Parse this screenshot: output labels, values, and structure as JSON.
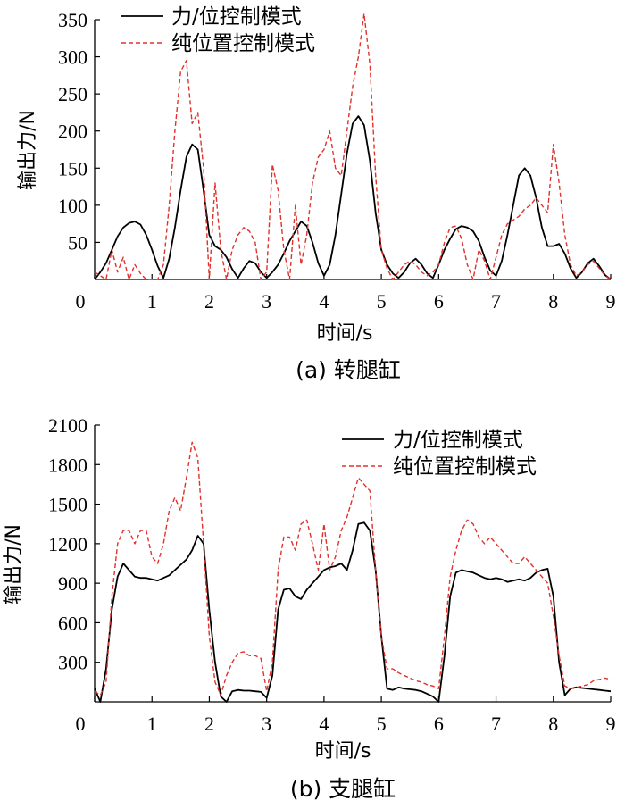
{
  "chart_data": [
    {
      "type": "line",
      "caption": "(a)  转腿缸",
      "xlabel": "时间/s",
      "ylabel": "输出力/N",
      "xlim": [
        0,
        9
      ],
      "ylim": [
        0,
        350
      ],
      "xticks": [
        0,
        1,
        2,
        3,
        4,
        5,
        6,
        7,
        8,
        9
      ],
      "yticks": [
        50,
        100,
        150,
        200,
        250,
        300,
        350
      ],
      "legend_position": "top-left",
      "series": [
        {
          "name": "力/位控制模式",
          "color": "#000000",
          "style": "solid",
          "x": [
            0.0,
            0.1,
            0.2,
            0.3,
            0.4,
            0.5,
            0.6,
            0.7,
            0.8,
            0.9,
            1.0,
            1.1,
            1.2,
            1.3,
            1.4,
            1.5,
            1.6,
            1.7,
            1.8,
            1.9,
            2.0,
            2.1,
            2.2,
            2.3,
            2.4,
            2.5,
            2.6,
            2.7,
            2.8,
            2.9,
            3.0,
            3.1,
            3.2,
            3.3,
            3.4,
            3.5,
            3.6,
            3.7,
            3.8,
            3.9,
            4.0,
            4.1,
            4.2,
            4.3,
            4.4,
            4.5,
            4.6,
            4.7,
            4.8,
            4.9,
            5.0,
            5.1,
            5.2,
            5.3,
            5.4,
            5.5,
            5.6,
            5.7,
            5.8,
            5.9,
            6.0,
            6.1,
            6.2,
            6.3,
            6.4,
            6.5,
            6.6,
            6.7,
            6.8,
            6.9,
            7.0,
            7.1,
            7.2,
            7.3,
            7.4,
            7.5,
            7.6,
            7.7,
            7.8,
            7.9,
            8.0,
            8.1,
            8.2,
            8.3,
            8.4,
            8.5,
            8.6,
            8.7,
            8.8,
            8.9,
            9.0
          ],
          "y": [
            0,
            10,
            22,
            40,
            58,
            70,
            76,
            78,
            74,
            60,
            40,
            18,
            2,
            28,
            70,
            120,
            165,
            182,
            175,
            120,
            60,
            45,
            40,
            30,
            14,
            2,
            15,
            25,
            22,
            10,
            2,
            10,
            20,
            35,
            52,
            65,
            78,
            72,
            50,
            22,
            5,
            20,
            60,
            115,
            170,
            210,
            220,
            208,
            160,
            90,
            40,
            20,
            8,
            2,
            10,
            22,
            28,
            20,
            8,
            2,
            20,
            40,
            55,
            68,
            72,
            70,
            65,
            52,
            30,
            12,
            5,
            25,
            60,
            100,
            140,
            150,
            140,
            110,
            70,
            45,
            45,
            48,
            35,
            15,
            2,
            10,
            22,
            28,
            18,
            6,
            0
          ]
        },
        {
          "name": "纯位置控制模式",
          "color": "#e0322c",
          "style": "dashed",
          "x": [
            0.0,
            0.1,
            0.2,
            0.3,
            0.4,
            0.5,
            0.6,
            0.7,
            0.8,
            0.9,
            1.0,
            1.1,
            1.2,
            1.3,
            1.4,
            1.5,
            1.6,
            1.7,
            1.8,
            1.9,
            2.0,
            2.1,
            2.2,
            2.3,
            2.4,
            2.5,
            2.6,
            2.7,
            2.8,
            2.9,
            3.0,
            3.1,
            3.2,
            3.3,
            3.4,
            3.5,
            3.6,
            3.7,
            3.8,
            3.9,
            4.0,
            4.1,
            4.2,
            4.3,
            4.4,
            4.5,
            4.6,
            4.7,
            4.8,
            4.9,
            5.0,
            5.1,
            5.2,
            5.3,
            5.4,
            5.5,
            5.6,
            5.7,
            5.8,
            5.9,
            6.0,
            6.1,
            6.2,
            6.3,
            6.4,
            6.5,
            6.6,
            6.7,
            6.8,
            6.9,
            7.0,
            7.1,
            7.2,
            7.3,
            7.4,
            7.5,
            7.6,
            7.7,
            7.8,
            7.9,
            8.0,
            8.1,
            8.2,
            8.3,
            8.4,
            8.5,
            8.6,
            8.7,
            8.8,
            8.9,
            9.0
          ],
          "y": [
            10,
            5,
            0,
            40,
            10,
            30,
            0,
            20,
            8,
            0,
            0,
            0,
            20,
            100,
            200,
            280,
            295,
            210,
            225,
            150,
            0,
            130,
            40,
            0,
            40,
            60,
            70,
            65,
            50,
            0,
            10,
            155,
            120,
            40,
            0,
            100,
            20,
            60,
            130,
            165,
            175,
            200,
            150,
            140,
            200,
            260,
            300,
            358,
            290,
            140,
            40,
            15,
            0,
            10,
            20,
            25,
            20,
            10,
            5,
            10,
            20,
            50,
            70,
            72,
            55,
            20,
            0,
            40,
            25,
            0,
            30,
            60,
            75,
            80,
            85,
            95,
            100,
            110,
            100,
            90,
            182,
            130,
            60,
            20,
            5,
            10,
            20,
            25,
            15,
            5,
            0
          ]
        }
      ]
    },
    {
      "type": "line",
      "caption": "(b)  支腿缸",
      "xlabel": "时间/s",
      "ylabel": "输出力/N",
      "xlim": [
        0,
        9
      ],
      "ylim": [
        0,
        2100
      ],
      "xticks": [
        0,
        1,
        2,
        3,
        4,
        5,
        6,
        7,
        8,
        9
      ],
      "yticks": [
        300,
        600,
        900,
        1200,
        1500,
        1800,
        2100
      ],
      "legend_position": "top-right",
      "series": [
        {
          "name": "力/位控制模式",
          "color": "#000000",
          "style": "solid",
          "x": [
            0.0,
            0.1,
            0.2,
            0.3,
            0.4,
            0.5,
            0.6,
            0.7,
            0.8,
            0.9,
            1.0,
            1.1,
            1.2,
            1.3,
            1.4,
            1.5,
            1.6,
            1.7,
            1.8,
            1.9,
            2.0,
            2.1,
            2.2,
            2.3,
            2.4,
            2.5,
            2.6,
            2.7,
            2.8,
            2.9,
            3.0,
            3.1,
            3.2,
            3.3,
            3.4,
            3.5,
            3.6,
            3.7,
            3.8,
            3.9,
            4.0,
            4.1,
            4.2,
            4.3,
            4.4,
            4.5,
            4.6,
            4.7,
            4.8,
            4.9,
            5.0,
            5.1,
            5.2,
            5.3,
            5.4,
            5.5,
            5.6,
            5.7,
            5.8,
            5.9,
            6.0,
            6.1,
            6.2,
            6.3,
            6.4,
            6.5,
            6.6,
            6.7,
            6.8,
            6.9,
            7.0,
            7.1,
            7.2,
            7.3,
            7.4,
            7.5,
            7.6,
            7.7,
            7.8,
            7.9,
            8.0,
            8.1,
            8.2,
            8.3,
            8.4,
            8.5,
            8.6,
            8.7,
            8.8,
            8.9,
            9.0
          ],
          "y": [
            100,
            0,
            250,
            700,
            950,
            1050,
            1000,
            950,
            940,
            940,
            930,
            920,
            940,
            960,
            1000,
            1040,
            1080,
            1150,
            1260,
            1200,
            700,
            300,
            40,
            0,
            80,
            90,
            85,
            85,
            80,
            75,
            30,
            200,
            700,
            850,
            860,
            800,
            780,
            850,
            900,
            950,
            1000,
            1020,
            1030,
            1050,
            1000,
            1150,
            1350,
            1360,
            1300,
            1000,
            500,
            100,
            90,
            110,
            100,
            95,
            90,
            80,
            60,
            40,
            0,
            350,
            800,
            980,
            1000,
            990,
            980,
            960,
            940,
            930,
            940,
            930,
            910,
            920,
            930,
            920,
            940,
            980,
            1000,
            1010,
            800,
            300,
            50,
            100,
            110,
            105,
            100,
            95,
            90,
            85,
            80
          ]
        },
        {
          "name": "纯位置控制模式",
          "color": "#e0322c",
          "style": "dashed",
          "x": [
            0.0,
            0.1,
            0.2,
            0.3,
            0.4,
            0.5,
            0.6,
            0.7,
            0.8,
            0.9,
            1.0,
            1.1,
            1.2,
            1.3,
            1.4,
            1.5,
            1.6,
            1.7,
            1.8,
            1.9,
            2.0,
            2.1,
            2.2,
            2.3,
            2.4,
            2.5,
            2.6,
            2.7,
            2.8,
            2.9,
            3.0,
            3.1,
            3.2,
            3.3,
            3.4,
            3.5,
            3.6,
            3.7,
            3.8,
            3.9,
            4.0,
            4.1,
            4.2,
            4.3,
            4.4,
            4.5,
            4.6,
            4.7,
            4.8,
            4.9,
            5.0,
            5.1,
            5.2,
            5.3,
            5.4,
            5.5,
            5.6,
            5.7,
            5.8,
            5.9,
            6.0,
            6.1,
            6.2,
            6.3,
            6.4,
            6.5,
            6.6,
            6.7,
            6.8,
            6.9,
            7.0,
            7.1,
            7.2,
            7.3,
            7.4,
            7.5,
            7.6,
            7.7,
            7.8,
            7.9,
            8.0,
            8.1,
            8.2,
            8.3,
            8.4,
            8.5,
            8.6,
            8.7,
            8.8,
            8.9,
            9.0
          ],
          "y": [
            80,
            50,
            150,
            800,
            1200,
            1300,
            1300,
            1200,
            1300,
            1300,
            1100,
            1050,
            1200,
            1450,
            1550,
            1450,
            1700,
            1970,
            1850,
            1200,
            500,
            150,
            50,
            200,
            300,
            370,
            380,
            350,
            350,
            330,
            80,
            300,
            1000,
            1250,
            1250,
            1150,
            1350,
            1380,
            1200,
            1000,
            1350,
            1000,
            1100,
            1300,
            1400,
            1550,
            1700,
            1650,
            1600,
            1000,
            500,
            250,
            250,
            220,
            200,
            180,
            160,
            150,
            130,
            120,
            100,
            500,
            950,
            1150,
            1300,
            1380,
            1350,
            1250,
            1200,
            1250,
            1200,
            1150,
            1100,
            1050,
            1050,
            1100,
            1050,
            1000,
            950,
            900,
            650,
            350,
            120,
            100,
            110,
            120,
            130,
            160,
            170,
            180,
            170
          ]
        }
      ]
    }
  ]
}
